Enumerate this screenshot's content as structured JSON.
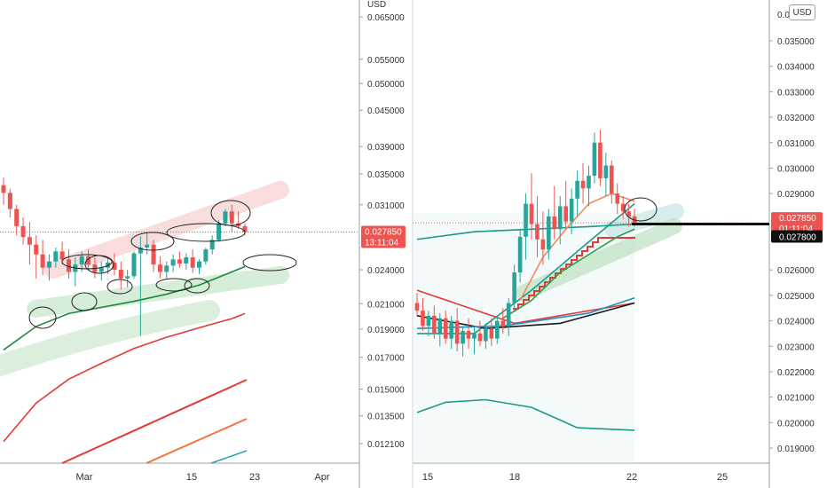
{
  "chart_data": [
    {
      "type": "candlestick",
      "currency_label": "USD",
      "y_scale": "log",
      "y_tick_labels": [
        "0.065000",
        "0.055000",
        "0.050000",
        "0.045000",
        "0.039000",
        "0.035000",
        "0.031000",
        "0.027850",
        "0.024000",
        "0.021000",
        "0.019000",
        "0.017000",
        "0.015000",
        "0.013500",
        "0.012100"
      ],
      "x_tick_labels": [
        "Mar",
        "15",
        "23",
        "Apr"
      ],
      "last_price_label": "0.027850",
      "countdown_label": "13:11:04",
      "colors": {
        "up": "#26a69a",
        "down": "#ef5350",
        "ma_green": "#1b8a3c",
        "ma_red": "#e53935",
        "ma_orange": "#f4743b",
        "ma_teal": "#26a3b8"
      },
      "candles": [
        {
          "o": 0.0335,
          "h": 0.0345,
          "l": 0.031,
          "c": 0.0325
        },
        {
          "o": 0.0325,
          "h": 0.033,
          "l": 0.0295,
          "c": 0.0305
        },
        {
          "o": 0.0305,
          "h": 0.031,
          "l": 0.0275,
          "c": 0.0285
        },
        {
          "o": 0.0285,
          "h": 0.0295,
          "l": 0.0265,
          "c": 0.0273
        },
        {
          "o": 0.0273,
          "h": 0.029,
          "l": 0.0245,
          "c": 0.0265
        },
        {
          "o": 0.0265,
          "h": 0.0275,
          "l": 0.0232,
          "c": 0.0255
        },
        {
          "o": 0.0255,
          "h": 0.027,
          "l": 0.0235,
          "c": 0.0242
        },
        {
          "o": 0.0242,
          "h": 0.0255,
          "l": 0.023,
          "c": 0.0248
        },
        {
          "o": 0.0248,
          "h": 0.0262,
          "l": 0.0242,
          "c": 0.0258
        },
        {
          "o": 0.0258,
          "h": 0.0268,
          "l": 0.0245,
          "c": 0.025
        },
        {
          "o": 0.025,
          "h": 0.026,
          "l": 0.0232,
          "c": 0.0238
        },
        {
          "o": 0.0238,
          "h": 0.0252,
          "l": 0.0225,
          "c": 0.0245
        },
        {
          "o": 0.0245,
          "h": 0.0258,
          "l": 0.0238,
          "c": 0.0253
        },
        {
          "o": 0.0253,
          "h": 0.026,
          "l": 0.024,
          "c": 0.0245
        },
        {
          "o": 0.0245,
          "h": 0.0252,
          "l": 0.0232,
          "c": 0.0238
        },
        {
          "o": 0.0238,
          "h": 0.0248,
          "l": 0.023,
          "c": 0.0242
        },
        {
          "o": 0.0242,
          "h": 0.0252,
          "l": 0.0236,
          "c": 0.0247
        },
        {
          "o": 0.0247,
          "h": 0.0256,
          "l": 0.0235,
          "c": 0.024
        },
        {
          "o": 0.024,
          "h": 0.0248,
          "l": 0.0222,
          "c": 0.0232
        },
        {
          "o": 0.0232,
          "h": 0.024,
          "l": 0.0224,
          "c": 0.0234
        },
        {
          "o": 0.0234,
          "h": 0.0258,
          "l": 0.0232,
          "c": 0.0256
        },
        {
          "o": 0.0256,
          "h": 0.0274,
          "l": 0.0185,
          "c": 0.0262
        },
        {
          "o": 0.0262,
          "h": 0.0278,
          "l": 0.0255,
          "c": 0.0265
        },
        {
          "o": 0.0265,
          "h": 0.027,
          "l": 0.0238,
          "c": 0.0245
        },
        {
          "o": 0.0245,
          "h": 0.0253,
          "l": 0.0232,
          "c": 0.0238
        },
        {
          "o": 0.0238,
          "h": 0.0248,
          "l": 0.0232,
          "c": 0.0244
        },
        {
          "o": 0.0244,
          "h": 0.0255,
          "l": 0.0238,
          "c": 0.025
        },
        {
          "o": 0.025,
          "h": 0.0258,
          "l": 0.0242,
          "c": 0.0246
        },
        {
          "o": 0.0246,
          "h": 0.0256,
          "l": 0.024,
          "c": 0.0252
        },
        {
          "o": 0.0252,
          "h": 0.026,
          "l": 0.0237,
          "c": 0.0242
        },
        {
          "o": 0.0242,
          "h": 0.025,
          "l": 0.0236,
          "c": 0.0248
        },
        {
          "o": 0.0248,
          "h": 0.0262,
          "l": 0.0245,
          "c": 0.026
        },
        {
          "o": 0.026,
          "h": 0.0275,
          "l": 0.0255,
          "c": 0.027
        },
        {
          "o": 0.027,
          "h": 0.0292,
          "l": 0.0268,
          "c": 0.0288
        },
        {
          "o": 0.0288,
          "h": 0.0305,
          "l": 0.0285,
          "c": 0.0302
        },
        {
          "o": 0.0302,
          "h": 0.031,
          "l": 0.0278,
          "c": 0.0288
        },
        {
          "o": 0.0288,
          "h": 0.0302,
          "l": 0.0282,
          "c": 0.0285
        },
        {
          "o": 0.0285,
          "h": 0.0288,
          "l": 0.0275,
          "c": 0.02785
        }
      ],
      "ma_lines": [
        {
          "color": "#1b8a3c",
          "points": [
            [
              0,
              0.0175
            ],
            [
              5,
              0.0192
            ],
            [
              10,
              0.0202
            ],
            [
              15,
              0.0207
            ],
            [
              20,
              0.0212
            ],
            [
              25,
              0.0218
            ],
            [
              30,
              0.0226
            ],
            [
              35,
              0.0238
            ],
            [
              37,
              0.0243
            ]
          ]
        },
        {
          "color": "#e53935",
          "points": [
            [
              0,
              0.0122
            ],
            [
              5,
              0.0142
            ],
            [
              10,
              0.0156
            ],
            [
              15,
              0.0166
            ],
            [
              20,
              0.0176
            ],
            [
              25,
              0.0184
            ],
            [
              30,
              0.0191
            ],
            [
              35,
              0.0198
            ],
            [
              37,
              0.0202
            ]
          ]
        }
      ]
    },
    {
      "type": "candlestick",
      "currency_label": "USD",
      "y_tick_labels": [
        "0.035000",
        "0.034000",
        "0.033000",
        "0.032000",
        "0.031000",
        "0.030000",
        "0.029000",
        "0.026000",
        "0.025000",
        "0.024000",
        "0.023000",
        "0.022000",
        "0.021000",
        "0.020000",
        "0.019000"
      ],
      "top_tick_fragment": "0.0",
      "x_tick_labels": [
        "15",
        "18",
        "22",
        "25"
      ],
      "last_price_label": "0.027850",
      "countdown_label": "01:11:04",
      "line_price_label": "0.027800",
      "unit_button": "USD",
      "colors": {
        "up": "#26a69a",
        "down": "#ef5350",
        "band": "#1a9a8a",
        "ma_red": "#e53935",
        "ma_black": "#1a1a1a",
        "ma_teal": "#1f8fbf",
        "ma_green": "#2e9d4f",
        "ma_orange": "#f08a5d"
      },
      "candles": [
        {
          "o": 0.0247,
          "h": 0.0251,
          "l": 0.0242,
          "c": 0.0244
        },
        {
          "o": 0.0244,
          "h": 0.0249,
          "l": 0.0236,
          "c": 0.0238
        },
        {
          "o": 0.0238,
          "h": 0.0244,
          "l": 0.0234,
          "c": 0.0242
        },
        {
          "o": 0.0242,
          "h": 0.0246,
          "l": 0.0233,
          "c": 0.0235
        },
        {
          "o": 0.0235,
          "h": 0.0243,
          "l": 0.023,
          "c": 0.0241
        },
        {
          "o": 0.0241,
          "h": 0.0244,
          "l": 0.0231,
          "c": 0.0233
        },
        {
          "o": 0.0233,
          "h": 0.0242,
          "l": 0.0229,
          "c": 0.024
        },
        {
          "o": 0.024,
          "h": 0.0245,
          "l": 0.0228,
          "c": 0.0231
        },
        {
          "o": 0.0231,
          "h": 0.0238,
          "l": 0.0226,
          "c": 0.0236
        },
        {
          "o": 0.0236,
          "h": 0.0241,
          "l": 0.0229,
          "c": 0.0233
        },
        {
          "o": 0.0233,
          "h": 0.0238,
          "l": 0.0227,
          "c": 0.0235
        },
        {
          "o": 0.0235,
          "h": 0.024,
          "l": 0.023,
          "c": 0.0232
        },
        {
          "o": 0.0232,
          "h": 0.0239,
          "l": 0.0229,
          "c": 0.0237
        },
        {
          "o": 0.0237,
          "h": 0.0241,
          "l": 0.023,
          "c": 0.0233
        },
        {
          "o": 0.0233,
          "h": 0.0242,
          "l": 0.0231,
          "c": 0.024
        },
        {
          "o": 0.024,
          "h": 0.0245,
          "l": 0.0235,
          "c": 0.0238
        },
        {
          "o": 0.0238,
          "h": 0.0249,
          "l": 0.0234,
          "c": 0.0247
        },
        {
          "o": 0.0247,
          "h": 0.0262,
          "l": 0.0244,
          "c": 0.0259
        },
        {
          "o": 0.0259,
          "h": 0.0276,
          "l": 0.0255,
          "c": 0.0273
        },
        {
          "o": 0.0273,
          "h": 0.029,
          "l": 0.0264,
          "c": 0.0286
        },
        {
          "o": 0.0286,
          "h": 0.0298,
          "l": 0.0272,
          "c": 0.0278
        },
        {
          "o": 0.0278,
          "h": 0.0289,
          "l": 0.0265,
          "c": 0.0272
        },
        {
          "o": 0.0272,
          "h": 0.0283,
          "l": 0.0262,
          "c": 0.0268
        },
        {
          "o": 0.0268,
          "h": 0.0284,
          "l": 0.0264,
          "c": 0.0281
        },
        {
          "o": 0.0281,
          "h": 0.0293,
          "l": 0.0272,
          "c": 0.0276
        },
        {
          "o": 0.0276,
          "h": 0.0289,
          "l": 0.027,
          "c": 0.0285
        },
        {
          "o": 0.0285,
          "h": 0.0295,
          "l": 0.0276,
          "c": 0.0279
        },
        {
          "o": 0.0279,
          "h": 0.0292,
          "l": 0.0274,
          "c": 0.0288
        },
        {
          "o": 0.0288,
          "h": 0.0299,
          "l": 0.0281,
          "c": 0.0295
        },
        {
          "o": 0.0295,
          "h": 0.0302,
          "l": 0.0286,
          "c": 0.0292
        },
        {
          "o": 0.0292,
          "h": 0.0301,
          "l": 0.0285,
          "c": 0.0297
        },
        {
          "o": 0.0297,
          "h": 0.0314,
          "l": 0.0294,
          "c": 0.031
        },
        {
          "o": 0.031,
          "h": 0.0315,
          "l": 0.0293,
          "c": 0.0296
        },
        {
          "o": 0.0296,
          "h": 0.0306,
          "l": 0.0289,
          "c": 0.0301
        },
        {
          "o": 0.0301,
          "h": 0.0303,
          "l": 0.0286,
          "c": 0.029
        },
        {
          "o": 0.029,
          "h": 0.0294,
          "l": 0.0282,
          "c": 0.0286
        },
        {
          "o": 0.0286,
          "h": 0.0289,
          "l": 0.028,
          "c": 0.0283
        },
        {
          "o": 0.0283,
          "h": 0.0286,
          "l": 0.0277,
          "c": 0.0281
        },
        {
          "o": 0.0281,
          "h": 0.0284,
          "l": 0.0277,
          "c": 0.02785
        }
      ],
      "lines": [
        {
          "name": "",
          "color": "#1a9a8a",
          "points": [
            [
              0,
              0.0235
            ],
            [
              10,
              0.0235
            ],
            [
              20,
              0.0252
            ],
            [
              30,
              0.0271
            ],
            [
              38,
              0.0286
            ]
          ]
        },
        {
          "name": "",
          "color": "#1a9a8a",
          "points": [
            [
              0,
              0.0272
            ],
            [
              10,
              0.0275
            ],
            [
              20,
              0.0276
            ],
            [
              30,
              0.0277
            ],
            [
              38,
              0.0278
            ]
          ]
        },
        {
          "name": "",
          "color": "#1a9a8a",
          "points": [
            [
              0,
              0.0204
            ],
            [
              5,
              0.0208
            ],
            [
              12,
              0.0209
            ],
            [
              20,
              0.0206
            ],
            [
              28,
              0.0198
            ],
            [
              38,
              0.0197
            ]
          ]
        },
        {
          "name": "",
          "color": "#e53935",
          "points": [
            [
              0,
              0.0252
            ],
            [
              17,
              0.0239
            ],
            [
              38,
              0.0247
            ]
          ]
        },
        {
          "name": "",
          "color": "#1a1a1a",
          "points": [
            [
              0,
              0.0242
            ],
            [
              12,
              0.0237
            ],
            [
              25,
              0.0239
            ],
            [
              38,
              0.0247
            ]
          ]
        },
        {
          "name": "",
          "color": "#1f8fbf",
          "points": [
            [
              0,
              0.0237
            ],
            [
              15,
              0.0238
            ],
            [
              30,
              0.0243
            ],
            [
              38,
              0.0249
            ]
          ]
        },
        {
          "name": "",
          "color": "#2e9d4f",
          "points": [
            [
              15,
              0.0241
            ],
            [
              20,
              0.0248
            ],
            [
              25,
              0.0259
            ],
            [
              30,
              0.0266
            ],
            [
              35,
              0.0273
            ],
            [
              38,
              0.0276
            ]
          ]
        },
        {
          "name": "",
          "color": "#f08a5d",
          "points": [
            [
              18,
              0.0248
            ],
            [
              22,
              0.0265
            ],
            [
              26,
              0.0276
            ],
            [
              30,
              0.0286
            ],
            [
              34,
              0.029
            ],
            [
              38,
              0.0287
            ]
          ]
        }
      ]
    }
  ]
}
